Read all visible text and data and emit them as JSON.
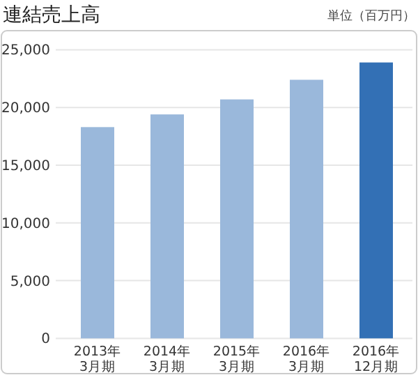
{
  "chart_data": {
    "type": "bar",
    "title": "連結売上高",
    "ylabel": "単位（百万円）",
    "categories": [
      "2013年\n3月期",
      "2014年\n3月期",
      "2015年\n3月期",
      "2016年\n3月期",
      "2016年\n12月期"
    ],
    "values": [
      18300,
      19400,
      20700,
      22400,
      23900
    ],
    "colors": [
      "#9ab8db",
      "#9ab8db",
      "#9ab8db",
      "#9ab8db",
      "#3370b5"
    ],
    "ylim": [
      0,
      25000
    ],
    "yticks": [
      {
        "value": 0,
        "label": "0"
      },
      {
        "value": 5000,
        "label": "5,000"
      },
      {
        "value": 10000,
        "label": "10,000"
      },
      {
        "value": 15000,
        "label": "15,000"
      },
      {
        "value": 20000,
        "label": "20,000"
      },
      {
        "value": 25000,
        "label": "25,000"
      }
    ],
    "grid": "y"
  }
}
